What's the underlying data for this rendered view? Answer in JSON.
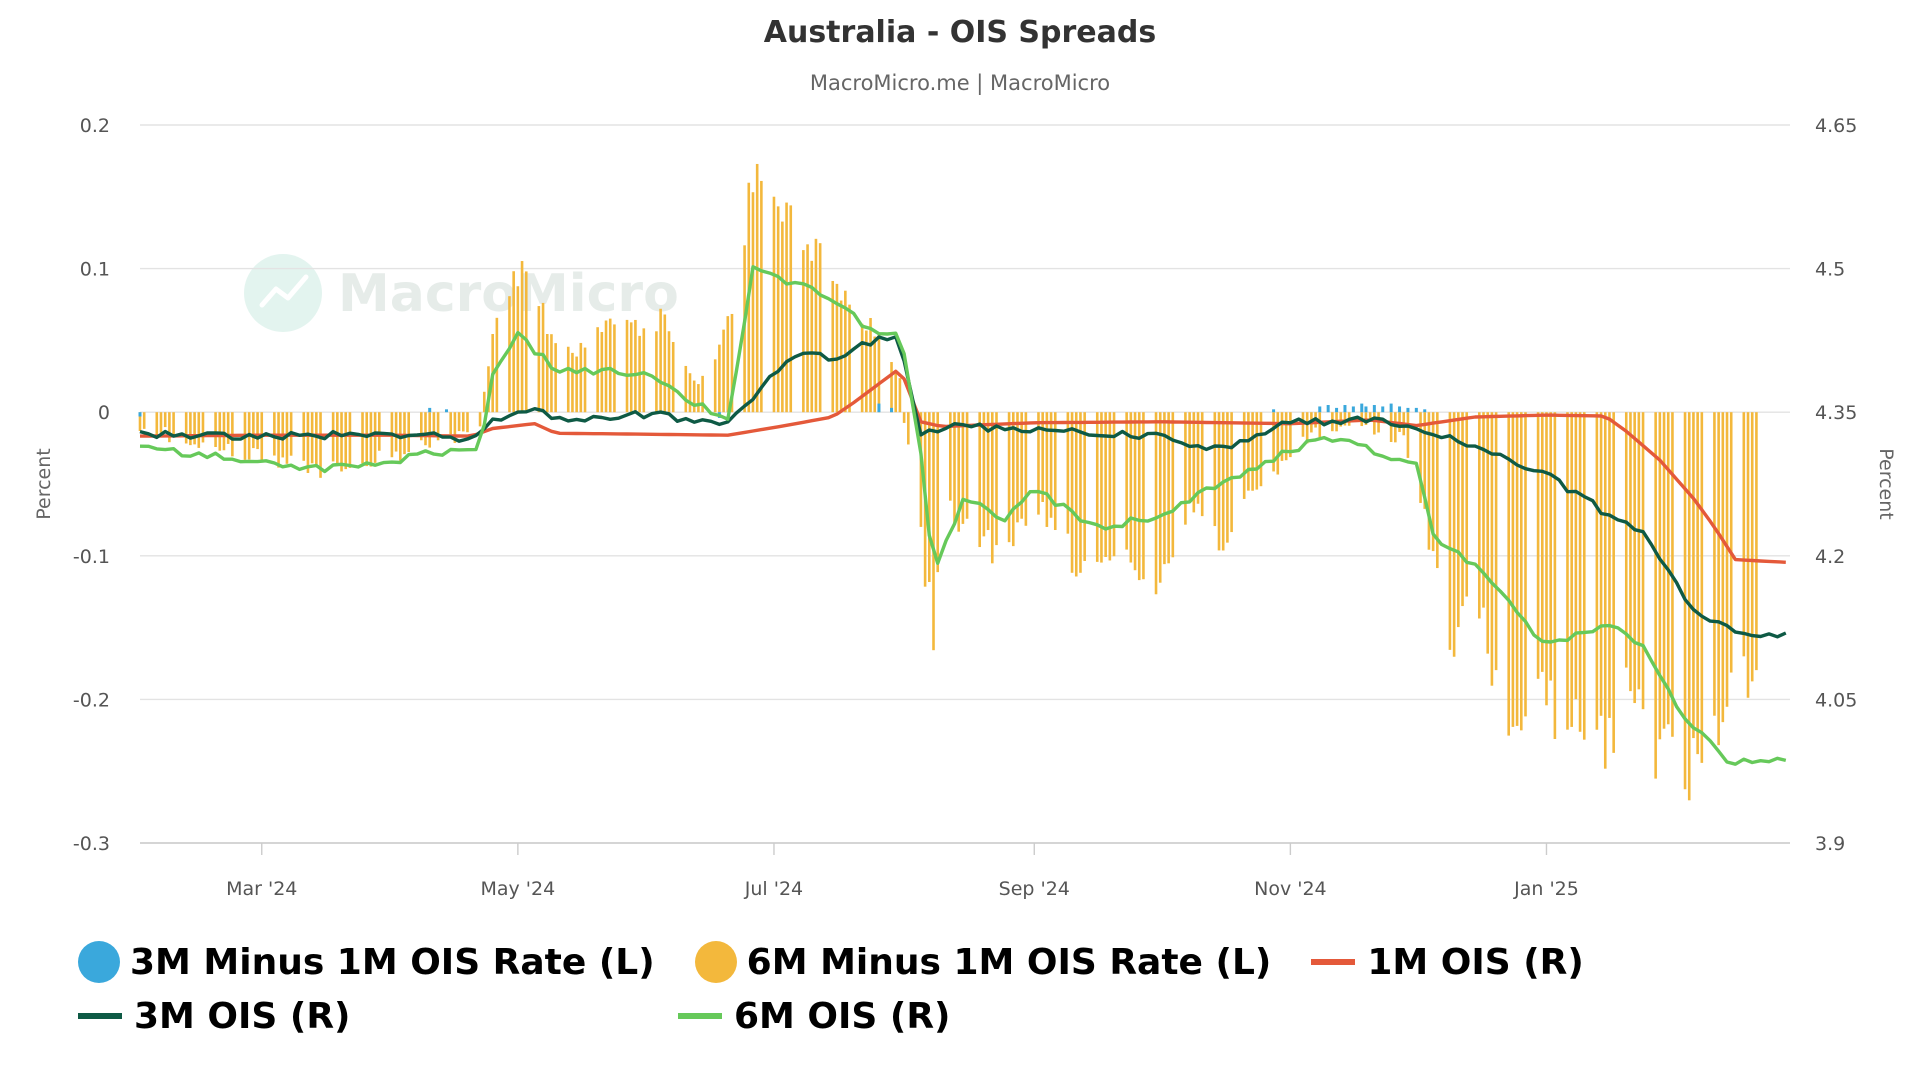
{
  "chart_data": {
    "type": "bar",
    "title": "Australia - OIS Spreads",
    "subtitle": "MacroMicro.me | MacroMicro",
    "watermark": "MacroMicro",
    "x_range": [
      "2024-02-01",
      "2025-02-28"
    ],
    "x_ticks": [
      {
        "date": "2024-03-01",
        "label": "Mar '24"
      },
      {
        "date": "2024-05-01",
        "label": "May '24"
      },
      {
        "date": "2024-07-01",
        "label": "Jul '24"
      },
      {
        "date": "2024-09-01",
        "label": "Sep '24"
      },
      {
        "date": "2024-11-01",
        "label": "Nov '24"
      },
      {
        "date": "2025-01-01",
        "label": "Jan '25"
      }
    ],
    "y_left": {
      "label": "Percent",
      "ylim": [
        -0.3,
        0.2
      ],
      "ticks": [
        0.2,
        0.1,
        0,
        -0.1,
        -0.2,
        -0.3
      ],
      "tick_labels": [
        "0.2",
        "0.1",
        "0",
        "-0.1",
        "-0.2",
        "-0.3"
      ]
    },
    "y_right": {
      "label": "Percent",
      "ylim": [
        3.9,
        4.65
      ],
      "ticks": [
        4.65,
        4.5,
        4.35,
        4.2,
        4.05,
        3.9
      ],
      "tick_labels": [
        "4.65",
        "4.5",
        "4.35",
        "4.2",
        "4.05",
        "3.9"
      ]
    },
    "grid": true,
    "legend_position": "bottom-left",
    "series": [
      {
        "name": "3M Minus 1M OIS Rate (L)",
        "type": "bar",
        "axis": "left",
        "color": "#3aa8dc",
        "points": [
          [
            "2024-02-01",
            -0.003
          ],
          [
            "2024-04-10",
            0.003
          ],
          [
            "2024-04-14",
            0.002
          ],
          [
            "2024-06-18",
            -0.004
          ],
          [
            "2024-07-26",
            0.006
          ],
          [
            "2024-07-29",
            0.003
          ],
          [
            "2024-10-28",
            0.002
          ],
          [
            "2024-11-08",
            0.004
          ],
          [
            "2024-11-10",
            0.005
          ],
          [
            "2024-11-12",
            0.003
          ],
          [
            "2024-11-14",
            0.005
          ],
          [
            "2024-11-16",
            0.004
          ],
          [
            "2024-11-18",
            0.006
          ],
          [
            "2024-11-19",
            0.004
          ],
          [
            "2024-11-21",
            0.005
          ],
          [
            "2024-11-23",
            0.004
          ],
          [
            "2024-11-25",
            0.006
          ],
          [
            "2024-11-27",
            0.004
          ],
          [
            "2024-11-29",
            0.003
          ],
          [
            "2024-12-01",
            0.003
          ],
          [
            "2024-12-03",
            0.002
          ]
        ]
      },
      {
        "name": "6M Minus 1M OIS Rate (L)",
        "type": "bar",
        "axis": "left",
        "color": "#f3b83c",
        "points": [
          [
            "2024-02-01",
            -0.01
          ],
          [
            "2024-02-15",
            -0.02
          ],
          [
            "2024-03-01",
            -0.03
          ],
          [
            "2024-03-15",
            -0.04
          ],
          [
            "2024-04-01",
            -0.03
          ],
          [
            "2024-04-15",
            -0.02
          ],
          [
            "2024-04-22",
            -0.01
          ],
          [
            "2024-04-25",
            0.06
          ],
          [
            "2024-05-01",
            0.1
          ],
          [
            "2024-05-05",
            0.08
          ],
          [
            "2024-05-10",
            0.05
          ],
          [
            "2024-05-15",
            0.04
          ],
          [
            "2024-05-20",
            0.06
          ],
          [
            "2024-05-25",
            0.07
          ],
          [
            "2024-06-01",
            0.05
          ],
          [
            "2024-06-05",
            0.07
          ],
          [
            "2024-06-10",
            0.03
          ],
          [
            "2024-06-15",
            0.02
          ],
          [
            "2024-06-20",
            0.06
          ],
          [
            "2024-06-26",
            0.16
          ],
          [
            "2024-07-01",
            0.15
          ],
          [
            "2024-07-05",
            0.14
          ],
          [
            "2024-07-10",
            0.12
          ],
          [
            "2024-07-15",
            0.09
          ],
          [
            "2024-07-20",
            0.07
          ],
          [
            "2024-07-25",
            0.06
          ],
          [
            "2024-07-31",
            0.02
          ],
          [
            "2024-08-03",
            -0.05
          ],
          [
            "2024-08-08",
            -0.15
          ],
          [
            "2024-08-10",
            -0.06
          ],
          [
            "2024-08-15",
            -0.08
          ],
          [
            "2024-08-20",
            -0.09
          ],
          [
            "2024-08-25",
            -0.1
          ],
          [
            "2024-09-01",
            -0.06
          ],
          [
            "2024-09-05",
            -0.08
          ],
          [
            "2024-09-10",
            -0.1
          ],
          [
            "2024-09-15",
            -0.12
          ],
          [
            "2024-09-20",
            -0.09
          ],
          [
            "2024-09-25",
            -0.11
          ],
          [
            "2024-10-01",
            -0.13
          ],
          [
            "2024-10-05",
            -0.08
          ],
          [
            "2024-10-10",
            -0.06
          ],
          [
            "2024-10-15",
            -0.09
          ],
          [
            "2024-10-20",
            -0.07
          ],
          [
            "2024-10-25",
            -0.05
          ],
          [
            "2024-11-01",
            -0.03
          ],
          [
            "2024-11-05",
            -0.02
          ],
          [
            "2024-11-10",
            -0.01
          ],
          [
            "2024-11-20",
            -0.01
          ],
          [
            "2024-11-28",
            -0.02
          ],
          [
            "2024-12-01",
            -0.05
          ],
          [
            "2024-12-05",
            -0.1
          ],
          [
            "2024-12-10",
            -0.16
          ],
          [
            "2024-12-15",
            -0.13
          ],
          [
            "2024-12-20",
            -0.19
          ],
          [
            "2024-12-25",
            -0.22
          ],
          [
            "2025-01-01",
            -0.2
          ],
          [
            "2025-01-05",
            -0.22
          ],
          [
            "2025-01-10",
            -0.21
          ],
          [
            "2025-01-15",
            -0.23
          ],
          [
            "2025-01-20",
            -0.2
          ],
          [
            "2025-01-25",
            -0.22
          ],
          [
            "2025-02-01",
            -0.25
          ],
          [
            "2025-02-05",
            -0.24
          ],
          [
            "2025-02-10",
            -0.23
          ],
          [
            "2025-02-15",
            -0.19
          ],
          [
            "2025-02-20",
            -0.19
          ]
        ]
      },
      {
        "name": "1M OIS (R)",
        "type": "line",
        "axis": "right",
        "color": "#e4593a",
        "points": [
          [
            "2024-02-01",
            4.325
          ],
          [
            "2024-03-01",
            4.326
          ],
          [
            "2024-04-01",
            4.326
          ],
          [
            "2024-04-20",
            4.325
          ],
          [
            "2024-04-25",
            4.333
          ],
          [
            "2024-05-05",
            4.338
          ],
          [
            "2024-05-10",
            4.328
          ],
          [
            "2024-06-01",
            4.327
          ],
          [
            "2024-06-20",
            4.326
          ],
          [
            "2024-07-01",
            4.334
          ],
          [
            "2024-07-15",
            4.345
          ],
          [
            "2024-07-20",
            4.36
          ],
          [
            "2024-07-31",
            4.396
          ],
          [
            "2024-08-05",
            4.34
          ],
          [
            "2024-08-10",
            4.335
          ],
          [
            "2024-09-01",
            4.339
          ],
          [
            "2024-10-01",
            4.34
          ],
          [
            "2024-11-01",
            4.338
          ],
          [
            "2024-11-20",
            4.342
          ],
          [
            "2024-12-01",
            4.336
          ],
          [
            "2024-12-15",
            4.345
          ],
          [
            "2025-01-01",
            4.347
          ],
          [
            "2025-01-15",
            4.346
          ],
          [
            "2025-01-20",
            4.33
          ],
          [
            "2025-01-28",
            4.3
          ],
          [
            "2025-02-05",
            4.26
          ],
          [
            "2025-02-10",
            4.23
          ],
          [
            "2025-02-15",
            4.196
          ],
          [
            "2025-02-28",
            4.193
          ]
        ]
      },
      {
        "name": "3M OIS (R)",
        "type": "line",
        "axis": "right",
        "color": "#0e5a45",
        "points": [
          [
            "2024-02-01",
            4.328
          ],
          [
            "2024-03-01",
            4.325
          ],
          [
            "2024-04-01",
            4.327
          ],
          [
            "2024-04-20",
            4.323
          ],
          [
            "2024-04-25",
            4.34
          ],
          [
            "2024-05-05",
            4.357
          ],
          [
            "2024-05-10",
            4.342
          ],
          [
            "2024-06-01",
            4.348
          ],
          [
            "2024-06-20",
            4.338
          ],
          [
            "2024-06-26",
            4.365
          ],
          [
            "2024-07-05",
            4.412
          ],
          [
            "2024-07-15",
            4.407
          ],
          [
            "2024-07-25",
            4.425
          ],
          [
            "2024-07-31",
            4.428
          ],
          [
            "2024-08-05",
            4.325
          ],
          [
            "2024-08-10",
            4.335
          ],
          [
            "2024-09-01",
            4.332
          ],
          [
            "2024-10-01",
            4.325
          ],
          [
            "2024-10-15",
            4.31
          ],
          [
            "2024-11-01",
            4.34
          ],
          [
            "2024-11-20",
            4.342
          ],
          [
            "2024-12-01",
            4.332
          ],
          [
            "2024-12-15",
            4.315
          ],
          [
            "2025-01-01",
            4.285
          ],
          [
            "2025-01-15",
            4.245
          ],
          [
            "2025-01-25",
            4.22
          ],
          [
            "2025-02-05",
            4.14
          ],
          [
            "2025-02-15",
            4.12
          ],
          [
            "2025-02-28",
            4.115
          ]
        ]
      },
      {
        "name": "6M OIS (R)",
        "type": "line",
        "axis": "right",
        "color": "#66c95a",
        "points": [
          [
            "2024-02-01",
            4.312
          ],
          [
            "2024-03-01",
            4.3
          ],
          [
            "2024-03-15",
            4.29
          ],
          [
            "2024-04-01",
            4.3
          ],
          [
            "2024-04-22",
            4.315
          ],
          [
            "2024-04-25",
            4.39
          ],
          [
            "2024-05-01",
            4.43
          ],
          [
            "2024-05-10",
            4.395
          ],
          [
            "2024-06-01",
            4.39
          ],
          [
            "2024-06-20",
            4.34
          ],
          [
            "2024-06-26",
            4.5
          ],
          [
            "2024-07-05",
            4.485
          ],
          [
            "2024-07-15",
            4.47
          ],
          [
            "2024-07-25",
            4.43
          ],
          [
            "2024-07-31",
            4.435
          ],
          [
            "2024-08-05",
            4.31
          ],
          [
            "2024-08-08",
            4.18
          ],
          [
            "2024-08-15",
            4.26
          ],
          [
            "2024-08-25",
            4.24
          ],
          [
            "2024-09-01",
            4.27
          ],
          [
            "2024-09-15",
            4.23
          ],
          [
            "2024-10-01",
            4.24
          ],
          [
            "2024-10-15",
            4.275
          ],
          [
            "2024-11-01",
            4.31
          ],
          [
            "2024-11-10",
            4.325
          ],
          [
            "2024-11-20",
            4.31
          ],
          [
            "2024-12-01",
            4.295
          ],
          [
            "2024-12-05",
            4.22
          ],
          [
            "2024-12-15",
            4.19
          ],
          [
            "2025-01-01",
            4.105
          ],
          [
            "2025-01-15",
            4.13
          ],
          [
            "2025-01-25",
            4.1
          ],
          [
            "2025-02-01",
            4.04
          ],
          [
            "2025-02-10",
            4.0
          ],
          [
            "2025-02-15",
            3.98
          ],
          [
            "2025-02-20",
            3.99
          ],
          [
            "2025-02-28",
            3.985
          ]
        ]
      }
    ]
  }
}
